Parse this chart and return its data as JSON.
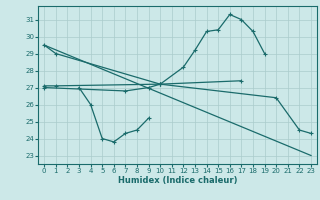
{
  "xlabel": "Humidex (Indice chaleur)",
  "background_color": "#cce8e8",
  "grid_color": "#aacccc",
  "line_color": "#1a6b6b",
  "ylim": [
    22.5,
    31.8
  ],
  "xlim": [
    -0.5,
    23.5
  ],
  "yticks": [
    23,
    24,
    25,
    26,
    27,
    28,
    29,
    30,
    31
  ],
  "xticks": [
    0,
    1,
    2,
    3,
    4,
    5,
    6,
    7,
    8,
    9,
    10,
    11,
    12,
    13,
    14,
    15,
    16,
    17,
    18,
    19,
    20,
    21,
    22,
    23
  ],
  "line1_x": [
    0,
    1,
    10,
    12,
    13,
    14,
    15,
    16,
    17,
    18,
    19
  ],
  "line1_y": [
    29.5,
    29.0,
    27.2,
    28.2,
    29.2,
    30.3,
    30.4,
    31.3,
    31.0,
    30.3,
    29.0
  ],
  "line2_x": [
    0,
    1,
    10,
    17
  ],
  "line2_y": [
    27.1,
    27.1,
    27.2,
    27.4
  ],
  "line3_x": [
    0,
    7,
    9,
    10,
    20,
    22,
    23
  ],
  "line3_y": [
    27.0,
    26.8,
    27.0,
    27.2,
    26.4,
    24.5,
    24.3
  ],
  "line4_x": [
    3,
    4,
    5,
    6,
    7,
    8,
    9
  ],
  "line4_y": [
    27.0,
    26.0,
    24.0,
    23.8,
    24.3,
    24.5,
    25.2
  ],
  "line5_x": [
    0,
    23
  ],
  "line5_y": [
    29.5,
    23.0
  ]
}
